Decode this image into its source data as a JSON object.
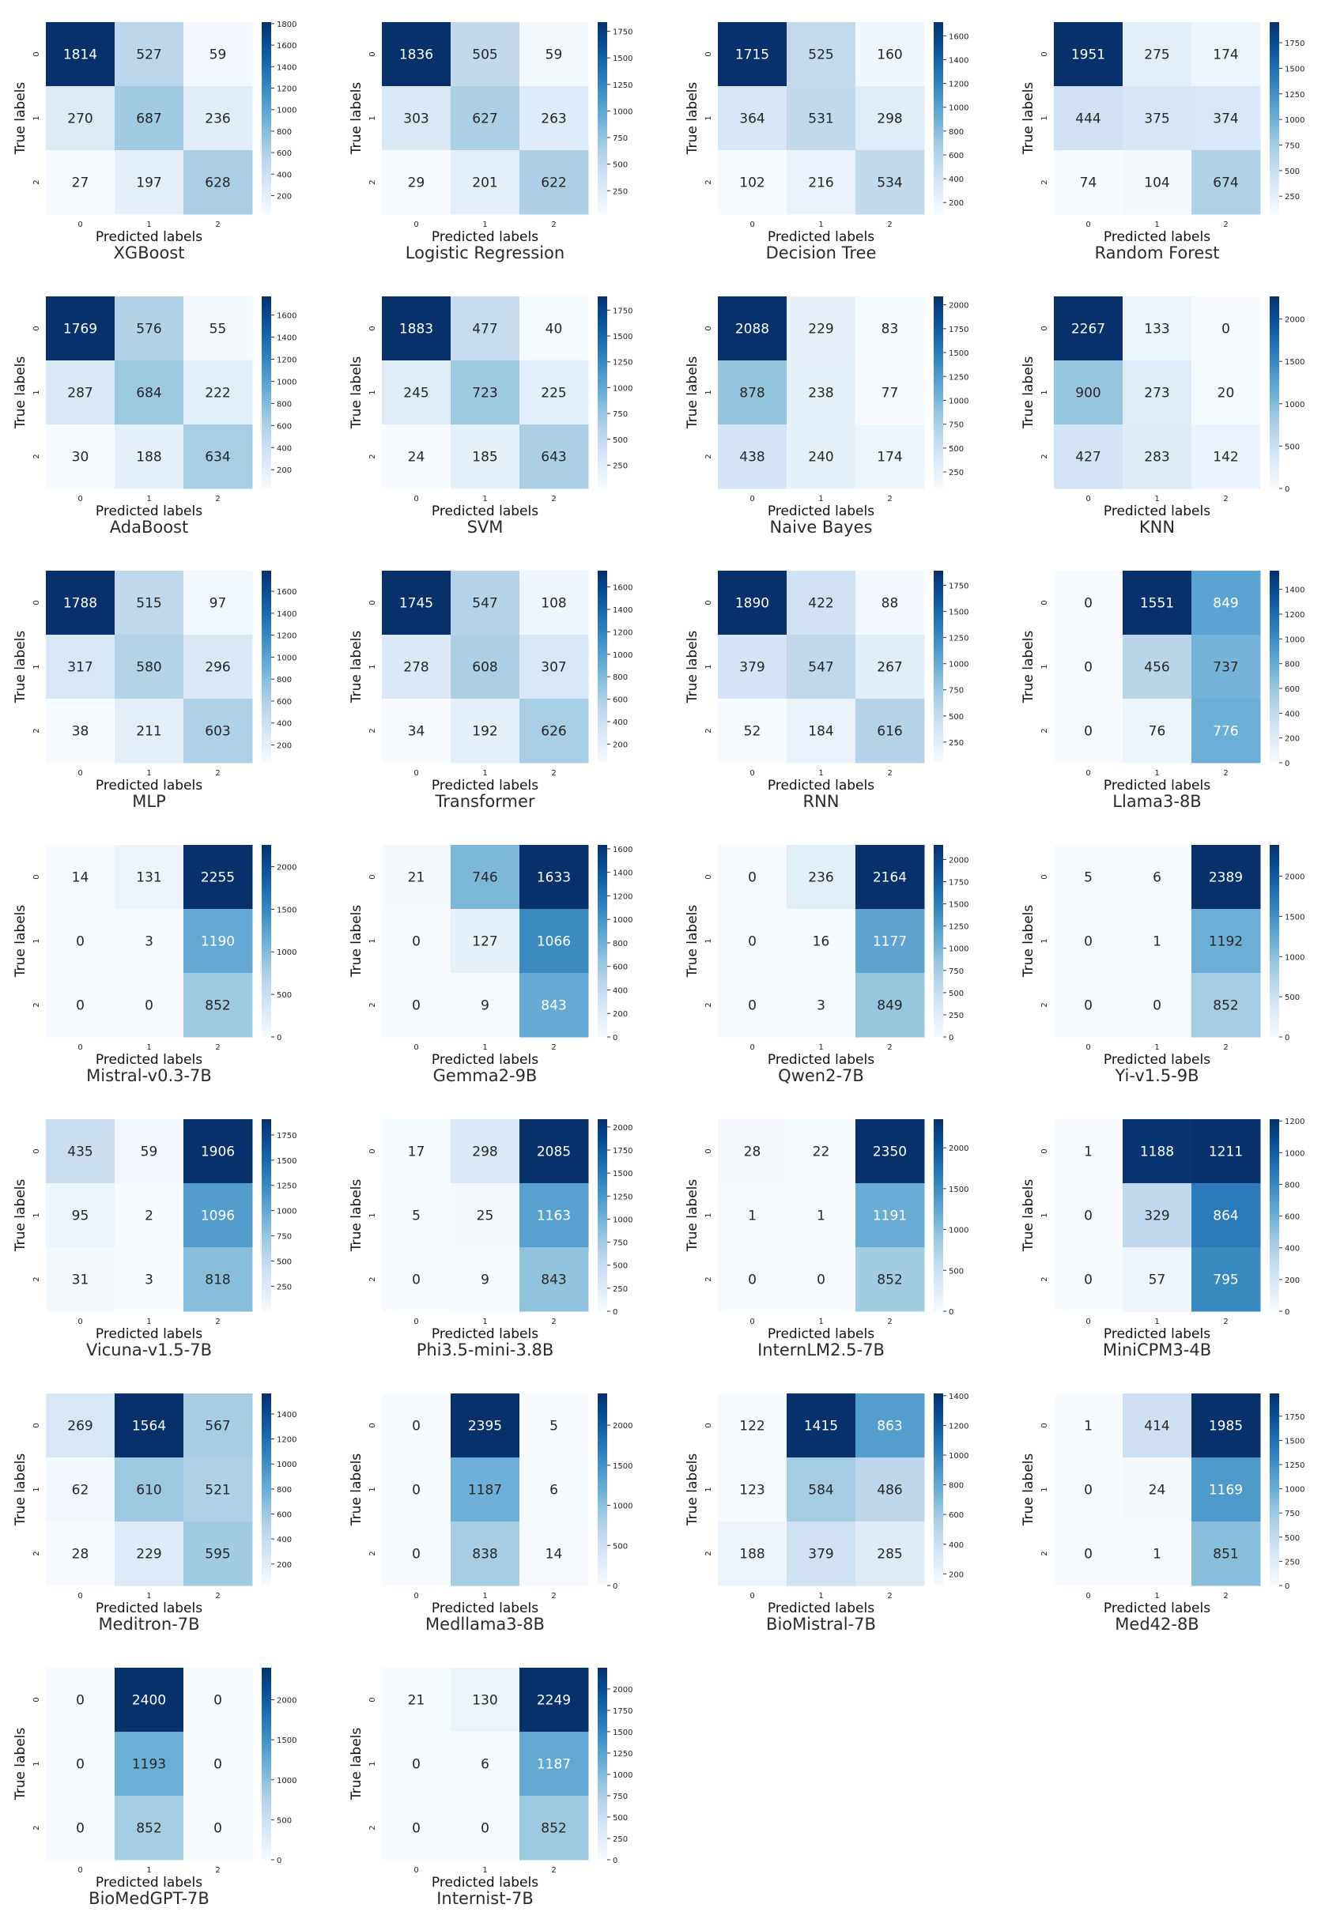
{
  "colors": {
    "scale": [
      "#f7fbff",
      "#deebf7",
      "#c6dbef",
      "#9ecae1",
      "#6baed6",
      "#4292c6",
      "#2171b5",
      "#08519c",
      "#08306b"
    ],
    "text_dark": "#262626",
    "text_light": "#ffffff"
  },
  "axis_labels": {
    "x": "Predicted labels",
    "y": "True labels"
  },
  "chart_data": [
    {
      "type": "heatmap",
      "title": "XGBoost",
      "xlabel": "Predicted labels",
      "ylabel": "True labels",
      "x_ticks": [
        "0",
        "1",
        "2"
      ],
      "y_ticks": [
        "0",
        "1",
        "2"
      ],
      "matrix": [
        [
          1814,
          527,
          59
        ],
        [
          270,
          687,
          236
        ],
        [
          27,
          197,
          628
        ]
      ],
      "colorbar_ticks": [
        200,
        400,
        600,
        800,
        1000,
        1200,
        1400,
        1600,
        1800
      ],
      "vmin": 27,
      "vmax": 1814
    },
    {
      "type": "heatmap",
      "title": "Logistic Regression",
      "xlabel": "Predicted labels",
      "ylabel": "True labels",
      "x_ticks": [
        "0",
        "1",
        "2"
      ],
      "y_ticks": [
        "0",
        "1",
        "2"
      ],
      "matrix": [
        [
          1836,
          505,
          59
        ],
        [
          303,
          627,
          263
        ],
        [
          29,
          201,
          622
        ]
      ],
      "colorbar_ticks": [
        250,
        500,
        750,
        1000,
        1250,
        1500,
        1750
      ],
      "vmin": 29,
      "vmax": 1836
    },
    {
      "type": "heatmap",
      "title": "Decision Tree",
      "xlabel": "Predicted labels",
      "ylabel": "True labels",
      "x_ticks": [
        "0",
        "1",
        "2"
      ],
      "y_ticks": [
        "0",
        "1",
        "2"
      ],
      "matrix": [
        [
          1715,
          525,
          160
        ],
        [
          364,
          531,
          298
        ],
        [
          102,
          216,
          534
        ]
      ],
      "colorbar_ticks": [
        200,
        400,
        600,
        800,
        1000,
        1200,
        1400,
        1600
      ],
      "vmin": 102,
      "vmax": 1715
    },
    {
      "type": "heatmap",
      "title": "Random Forest",
      "xlabel": "Predicted labels",
      "ylabel": "True labels",
      "x_ticks": [
        "0",
        "1",
        "2"
      ],
      "y_ticks": [
        "0",
        "1",
        "2"
      ],
      "matrix": [
        [
          1951,
          275,
          174
        ],
        [
          444,
          375,
          374
        ],
        [
          74,
          104,
          674
        ]
      ],
      "colorbar_ticks": [
        250,
        500,
        750,
        1000,
        1250,
        1500,
        1750
      ],
      "vmin": 74,
      "vmax": 1951
    },
    {
      "type": "heatmap",
      "title": "AdaBoost",
      "xlabel": "Predicted labels",
      "ylabel": "True labels",
      "x_ticks": [
        "0",
        "1",
        "2"
      ],
      "y_ticks": [
        "0",
        "1",
        "2"
      ],
      "matrix": [
        [
          1769,
          576,
          55
        ],
        [
          287,
          684,
          222
        ],
        [
          30,
          188,
          634
        ]
      ],
      "colorbar_ticks": [
        200,
        400,
        600,
        800,
        1000,
        1200,
        1400,
        1600
      ],
      "vmin": 30,
      "vmax": 1769
    },
    {
      "type": "heatmap",
      "title": "SVM",
      "xlabel": "Predicted labels",
      "ylabel": "True labels",
      "x_ticks": [
        "0",
        "1",
        "2"
      ],
      "y_ticks": [
        "0",
        "1",
        "2"
      ],
      "matrix": [
        [
          1883,
          477,
          40
        ],
        [
          245,
          723,
          225
        ],
        [
          24,
          185,
          643
        ]
      ],
      "colorbar_ticks": [
        250,
        500,
        750,
        1000,
        1250,
        1500,
        1750
      ],
      "vmin": 24,
      "vmax": 1883
    },
    {
      "type": "heatmap",
      "title": "Naive Bayes",
      "xlabel": "Predicted labels",
      "ylabel": "True labels",
      "x_ticks": [
        "0",
        "1",
        "2"
      ],
      "y_ticks": [
        "0",
        "1",
        "2"
      ],
      "matrix": [
        [
          2088,
          229,
          83
        ],
        [
          878,
          238,
          77
        ],
        [
          438,
          240,
          174
        ]
      ],
      "colorbar_ticks": [
        250,
        500,
        750,
        1000,
        1250,
        1500,
        1750,
        2000
      ],
      "vmin": 77,
      "vmax": 2088
    },
    {
      "type": "heatmap",
      "title": "KNN",
      "xlabel": "Predicted labels",
      "ylabel": "True labels",
      "x_ticks": [
        "0",
        "1",
        "2"
      ],
      "y_ticks": [
        "0",
        "1",
        "2"
      ],
      "matrix": [
        [
          2267,
          133,
          0
        ],
        [
          900,
          273,
          20
        ],
        [
          427,
          283,
          142
        ]
      ],
      "colorbar_ticks": [
        0,
        500,
        1000,
        1500,
        2000
      ],
      "vmin": 0,
      "vmax": 2267
    },
    {
      "type": "heatmap",
      "title": "MLP",
      "xlabel": "Predicted labels",
      "ylabel": "True labels",
      "x_ticks": [
        "0",
        "1",
        "2"
      ],
      "y_ticks": [
        "0",
        "1",
        "2"
      ],
      "matrix": [
        [
          1788,
          515,
          97
        ],
        [
          317,
          580,
          296
        ],
        [
          38,
          211,
          603
        ]
      ],
      "colorbar_ticks": [
        200,
        400,
        600,
        800,
        1000,
        1200,
        1400,
        1600
      ],
      "vmin": 38,
      "vmax": 1788
    },
    {
      "type": "heatmap",
      "title": "Transformer",
      "xlabel": "Predicted labels",
      "ylabel": "True labels",
      "x_ticks": [
        "0",
        "1",
        "2"
      ],
      "y_ticks": [
        "0",
        "1",
        "2"
      ],
      "matrix": [
        [
          1745,
          547,
          108
        ],
        [
          278,
          608,
          307
        ],
        [
          34,
          192,
          626
        ]
      ],
      "colorbar_ticks": [
        200,
        400,
        600,
        800,
        1000,
        1200,
        1400,
        1600
      ],
      "vmin": 34,
      "vmax": 1745
    },
    {
      "type": "heatmap",
      "title": "RNN",
      "xlabel": "Predicted labels",
      "ylabel": "True labels",
      "x_ticks": [
        "0",
        "1",
        "2"
      ],
      "y_ticks": [
        "0",
        "1",
        "2"
      ],
      "matrix": [
        [
          1890,
          422,
          88
        ],
        [
          379,
          547,
          267
        ],
        [
          52,
          184,
          616
        ]
      ],
      "colorbar_ticks": [
        250,
        500,
        750,
        1000,
        1250,
        1500,
        1750
      ],
      "vmin": 52,
      "vmax": 1890
    },
    {
      "type": "heatmap",
      "title": "Llama3-8B",
      "xlabel": "Predicted labels",
      "ylabel": "True labels",
      "x_ticks": [
        "0",
        "1",
        "2"
      ],
      "y_ticks": [
        "0",
        "1",
        "2"
      ],
      "matrix": [
        [
          0,
          1551,
          849
        ],
        [
          0,
          456,
          737
        ],
        [
          0,
          76,
          776
        ]
      ],
      "colorbar_ticks": [
        0,
        200,
        400,
        600,
        800,
        1000,
        1200,
        1400
      ],
      "vmin": 0,
      "vmax": 1551
    },
    {
      "type": "heatmap",
      "title": "Mistral-v0.3-7B",
      "xlabel": "Predicted labels",
      "ylabel": "True labels",
      "x_ticks": [
        "0",
        "1",
        "2"
      ],
      "y_ticks": [
        "0",
        "1",
        "2"
      ],
      "matrix": [
        [
          14,
          131,
          2255
        ],
        [
          0,
          3,
          1190
        ],
        [
          0,
          0,
          852
        ]
      ],
      "colorbar_ticks": [
        0,
        500,
        1000,
        1500,
        2000
      ],
      "vmin": 0,
      "vmax": 2255
    },
    {
      "type": "heatmap",
      "title": "Gemma2-9B",
      "xlabel": "Predicted labels",
      "ylabel": "True labels",
      "x_ticks": [
        "0",
        "1",
        "2"
      ],
      "y_ticks": [
        "0",
        "1",
        "2"
      ],
      "matrix": [
        [
          21,
          746,
          1633
        ],
        [
          0,
          127,
          1066
        ],
        [
          0,
          9,
          843
        ]
      ],
      "colorbar_ticks": [
        0,
        200,
        400,
        600,
        800,
        1000,
        1200,
        1400,
        1600
      ],
      "vmin": 0,
      "vmax": 1633
    },
    {
      "type": "heatmap",
      "title": "Qwen2-7B",
      "xlabel": "Predicted labels",
      "ylabel": "True labels",
      "x_ticks": [
        "0",
        "1",
        "2"
      ],
      "y_ticks": [
        "0",
        "1",
        "2"
      ],
      "matrix": [
        [
          0,
          236,
          2164
        ],
        [
          0,
          16,
          1177
        ],
        [
          0,
          3,
          849
        ]
      ],
      "colorbar_ticks": [
        0,
        250,
        500,
        750,
        1000,
        1250,
        1500,
        1750,
        2000
      ],
      "vmin": 0,
      "vmax": 2164
    },
    {
      "type": "heatmap",
      "title": "Yi-v1.5-9B",
      "xlabel": "Predicted labels",
      "ylabel": "True labels",
      "x_ticks": [
        "0",
        "1",
        "2"
      ],
      "y_ticks": [
        "0",
        "1",
        "2"
      ],
      "matrix": [
        [
          5,
          6,
          2389
        ],
        [
          0,
          1,
          1192
        ],
        [
          0,
          0,
          852
        ]
      ],
      "colorbar_ticks": [
        0,
        500,
        1000,
        1500,
        2000
      ],
      "vmin": 0,
      "vmax": 2389
    },
    {
      "type": "heatmap",
      "title": "Vicuna-v1.5-7B",
      "xlabel": "Predicted labels",
      "ylabel": "True labels",
      "x_ticks": [
        "0",
        "1",
        "2"
      ],
      "y_ticks": [
        "0",
        "1",
        "2"
      ],
      "matrix": [
        [
          435,
          59,
          1906
        ],
        [
          95,
          2,
          1096
        ],
        [
          31,
          3,
          818
        ]
      ],
      "colorbar_ticks": [
        250,
        500,
        750,
        1000,
        1250,
        1500,
        1750
      ],
      "vmin": 2,
      "vmax": 1906
    },
    {
      "type": "heatmap",
      "title": "Phi3.5-mini-3.8B",
      "xlabel": "Predicted labels",
      "ylabel": "True labels",
      "x_ticks": [
        "0",
        "1",
        "2"
      ],
      "y_ticks": [
        "0",
        "1",
        "2"
      ],
      "matrix": [
        [
          17,
          298,
          2085
        ],
        [
          5,
          25,
          1163
        ],
        [
          0,
          9,
          843
        ]
      ],
      "colorbar_ticks": [
        0,
        250,
        500,
        750,
        1000,
        1250,
        1500,
        1750,
        2000
      ],
      "vmin": 0,
      "vmax": 2085
    },
    {
      "type": "heatmap",
      "title": "InternLM2.5-7B",
      "xlabel": "Predicted labels",
      "ylabel": "True labels",
      "x_ticks": [
        "0",
        "1",
        "2"
      ],
      "y_ticks": [
        "0",
        "1",
        "2"
      ],
      "matrix": [
        [
          28,
          22,
          2350
        ],
        [
          1,
          1,
          1191
        ],
        [
          0,
          0,
          852
        ]
      ],
      "colorbar_ticks": [
        0,
        500,
        1000,
        1500,
        2000
      ],
      "vmin": 0,
      "vmax": 2350
    },
    {
      "type": "heatmap",
      "title": "MiniCPM3-4B",
      "xlabel": "Predicted labels",
      "ylabel": "True labels",
      "x_ticks": [
        "0",
        "1",
        "2"
      ],
      "y_ticks": [
        "0",
        "1",
        "2"
      ],
      "matrix": [
        [
          1,
          1188,
          1211
        ],
        [
          0,
          329,
          864
        ],
        [
          0,
          57,
          795
        ]
      ],
      "colorbar_ticks": [
        0,
        200,
        400,
        600,
        800,
        1000,
        1200
      ],
      "vmin": 0,
      "vmax": 1211
    },
    {
      "type": "heatmap",
      "title": "Meditron-7B",
      "xlabel": "Predicted labels",
      "ylabel": "True labels",
      "x_ticks": [
        "0",
        "1",
        "2"
      ],
      "y_ticks": [
        "0",
        "1",
        "2"
      ],
      "matrix": [
        [
          269,
          1564,
          567
        ],
        [
          62,
          610,
          521
        ],
        [
          28,
          229,
          595
        ]
      ],
      "colorbar_ticks": [
        200,
        400,
        600,
        800,
        1000,
        1200,
        1400
      ],
      "vmin": 28,
      "vmax": 1564
    },
    {
      "type": "heatmap",
      "title": "Medllama3-8B",
      "xlabel": "Predicted labels",
      "ylabel": "True labels",
      "x_ticks": [
        "0",
        "1",
        "2"
      ],
      "y_ticks": [
        "0",
        "1",
        "2"
      ],
      "matrix": [
        [
          0,
          2395,
          5
        ],
        [
          0,
          1187,
          6
        ],
        [
          0,
          838,
          14
        ]
      ],
      "colorbar_ticks": [
        0,
        500,
        1000,
        1500,
        2000
      ],
      "vmin": 0,
      "vmax": 2395
    },
    {
      "type": "heatmap",
      "title": "BioMistral-7B",
      "xlabel": "Predicted labels",
      "ylabel": "True labels",
      "x_ticks": [
        "0",
        "1",
        "2"
      ],
      "y_ticks": [
        "0",
        "1",
        "2"
      ],
      "matrix": [
        [
          122,
          1415,
          863
        ],
        [
          123,
          584,
          486
        ],
        [
          188,
          379,
          285
        ]
      ],
      "colorbar_ticks": [
        200,
        400,
        600,
        800,
        1000,
        1200,
        1400
      ],
      "vmin": 122,
      "vmax": 1415
    },
    {
      "type": "heatmap",
      "title": "Med42-8B",
      "xlabel": "Predicted labels",
      "ylabel": "True labels",
      "x_ticks": [
        "0",
        "1",
        "2"
      ],
      "y_ticks": [
        "0",
        "1",
        "2"
      ],
      "matrix": [
        [
          1,
          414,
          1985
        ],
        [
          0,
          24,
          1169
        ],
        [
          0,
          1,
          851
        ]
      ],
      "colorbar_ticks": [
        0,
        250,
        500,
        750,
        1000,
        1250,
        1500,
        1750
      ],
      "vmin": 0,
      "vmax": 1985
    },
    {
      "type": "heatmap",
      "title": "BioMedGPT-7B",
      "xlabel": "Predicted labels",
      "ylabel": "True labels",
      "x_ticks": [
        "0",
        "1",
        "2"
      ],
      "y_ticks": [
        "0",
        "1",
        "2"
      ],
      "matrix": [
        [
          0,
          2400,
          0
        ],
        [
          0,
          1193,
          0
        ],
        [
          0,
          852,
          0
        ]
      ],
      "colorbar_ticks": [
        0,
        500,
        1000,
        1500,
        2000
      ],
      "vmin": 0,
      "vmax": 2400
    },
    {
      "type": "heatmap",
      "title": "Internist-7B",
      "xlabel": "Predicted labels",
      "ylabel": "True labels",
      "x_ticks": [
        "0",
        "1",
        "2"
      ],
      "y_ticks": [
        "0",
        "1",
        "2"
      ],
      "matrix": [
        [
          21,
          130,
          2249
        ],
        [
          0,
          6,
          1187
        ],
        [
          0,
          0,
          852
        ]
      ],
      "colorbar_ticks": [
        0,
        250,
        500,
        750,
        1000,
        1250,
        1500,
        1750,
        2000
      ],
      "vmin": 0,
      "vmax": 2249
    }
  ]
}
